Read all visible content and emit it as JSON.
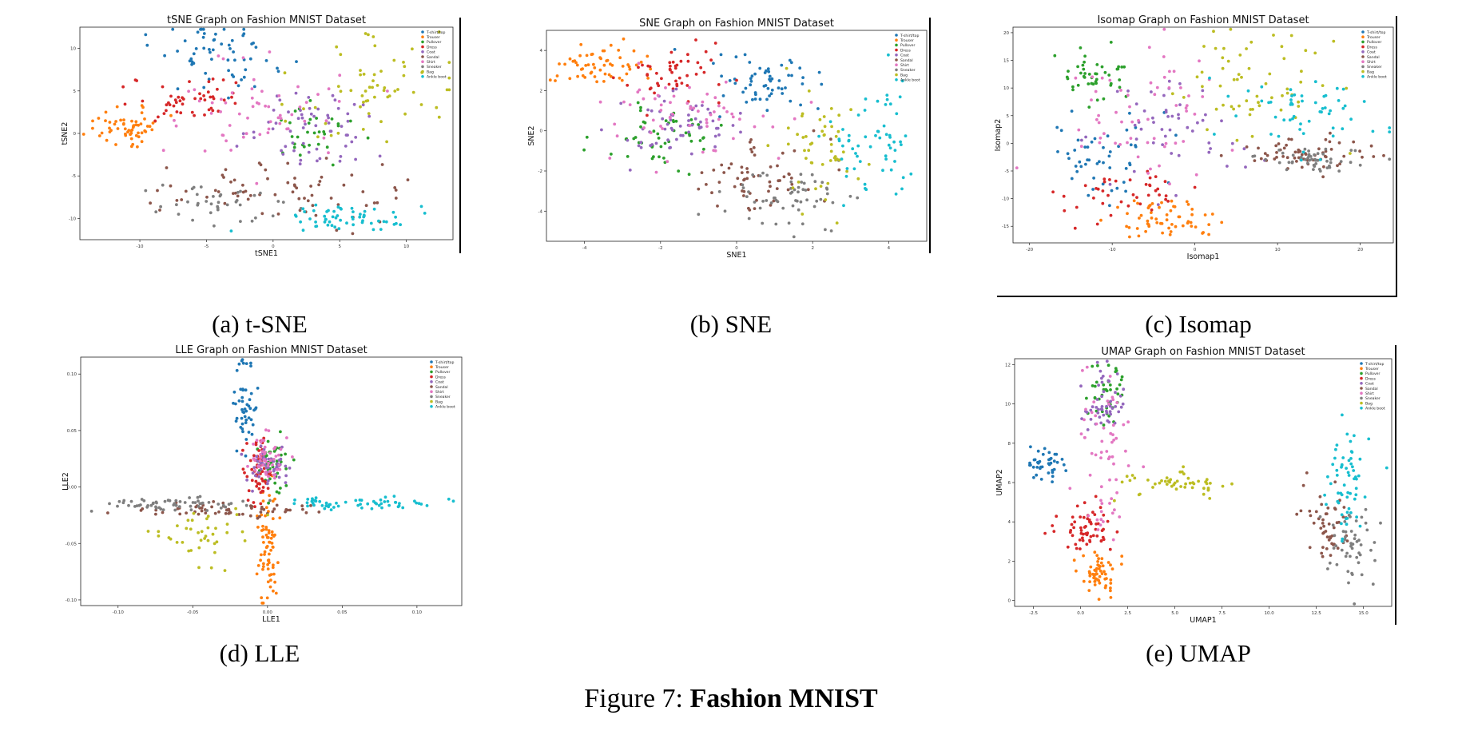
{
  "figure": {
    "prefix": "Figure 7:",
    "title": "Fashion MNIST"
  },
  "legend_labels": [
    "T-shirt/top",
    "Trouser",
    "Pullover",
    "Dress",
    "Coat",
    "Sandal",
    "Shirt",
    "Sneaker",
    "Bag",
    "Ankle boot"
  ],
  "colors": [
    "#1f77b4",
    "#ff7f0e",
    "#2ca02c",
    "#d62728",
    "#9467bd",
    "#8c564b",
    "#e377c2",
    "#7f7f7f",
    "#bcbd22",
    "#17becf"
  ],
  "panels": [
    {
      "caption": "(a) t-SNE",
      "title": "tSNE Graph on Fashion MNIST Dataset",
      "xlabel": "tSNE1",
      "ylabel": "tSNE2",
      "xticks": [
        "-10",
        "-5",
        "0",
        "5",
        "10"
      ],
      "yticks": [
        "-10",
        "-5",
        "0",
        "5",
        "10"
      ]
    },
    {
      "caption": "(b) SNE",
      "title": "SNE Graph on Fashion MNIST Dataset",
      "xlabel": "SNE1",
      "ylabel": "SNE2",
      "xticks": [
        "-4",
        "-2",
        "0",
        "2",
        "4"
      ],
      "yticks": [
        "-4",
        "-2",
        "0",
        "2",
        "4"
      ]
    },
    {
      "caption": "(c) Isomap",
      "title": "Isomap Graph on Fashion MNIST Dataset",
      "xlabel": "Isomap1",
      "ylabel": "Isomap2",
      "xticks": [
        "-20",
        "-10",
        "0",
        "10",
        "20"
      ],
      "yticks": [
        "-15",
        "-10",
        "-5",
        "0",
        "5",
        "10",
        "15",
        "20"
      ]
    },
    {
      "caption": "(d) LLE",
      "title": "LLE Graph on Fashion MNIST Dataset",
      "xlabel": "LLE1",
      "ylabel": "LLE2",
      "xticks": [
        "-0.10",
        "-0.05",
        "0.00",
        "0.05",
        "0.10"
      ],
      "yticks": [
        "-0.10",
        "-0.05",
        "0.00",
        "0.05",
        "0.10"
      ]
    },
    {
      "caption": "(e) UMAP",
      "title": "UMAP Graph on Fashion MNIST Dataset",
      "xlabel": "UMAP1",
      "ylabel": "UMAP2",
      "xticks": [
        "-2.5",
        "0.0",
        "2.5",
        "5.0",
        "7.5",
        "10.0",
        "12.5",
        "15.0"
      ],
      "yticks": [
        "0",
        "2",
        "4",
        "6",
        "8",
        "10",
        "12"
      ]
    }
  ],
  "chart_data": [
    {
      "type": "scatter",
      "title": "tSNE Graph on Fashion MNIST Dataset",
      "xlabel": "tSNE1",
      "ylabel": "tSNE2",
      "xlim": [
        -14.5,
        13.5
      ],
      "ylim": [
        -12.5,
        12.5
      ],
      "legend": "top-right",
      "clusters": [
        {
          "label": "T-shirt/top",
          "cx": -4,
          "cy": 9,
          "sx": 2.2,
          "sy": 2.2,
          "n": 60
        },
        {
          "label": "Trouser",
          "cx": -11,
          "cy": 1,
          "sx": 1.5,
          "sy": 1.0,
          "n": 60
        },
        {
          "label": "Pullover",
          "cx": 3,
          "cy": 0,
          "sx": 2.0,
          "sy": 2.0,
          "n": 30
        },
        {
          "label": "Dress",
          "cx": -6,
          "cy": 4,
          "sx": 2.2,
          "sy": 1.5,
          "n": 50
        },
        {
          "label": "Coat",
          "cx": 3,
          "cy": 1,
          "sx": 2.5,
          "sy": 2.5,
          "n": 60
        },
        {
          "label": "Sandal",
          "cx": 0,
          "cy": -7,
          "sx": 5.0,
          "sy": 1.8,
          "n": 70
        },
        {
          "label": "Shirt",
          "cx": -1,
          "cy": 3,
          "sx": 3.0,
          "sy": 3.0,
          "n": 60
        },
        {
          "label": "Sneaker",
          "cx": -4,
          "cy": -8.5,
          "sx": 2.5,
          "sy": 1.2,
          "n": 40
        },
        {
          "label": "Bag",
          "cx": 8,
          "cy": 6,
          "sx": 3.0,
          "sy": 3.0,
          "n": 60
        },
        {
          "label": "Ankle boot",
          "cx": 5,
          "cy": -10,
          "sx": 2.5,
          "sy": 0.8,
          "n": 60
        }
      ]
    },
    {
      "type": "scatter",
      "title": "SNE Graph on Fashion MNIST Dataset",
      "xlabel": "SNE1",
      "ylabel": "SNE2",
      "xlim": [
        -5,
        5
      ],
      "ylim": [
        -5.5,
        5
      ],
      "legend": "top-right",
      "clusters": [
        {
          "label": "T-shirt/top",
          "cx": 0.6,
          "cy": 2.2,
          "sx": 0.8,
          "sy": 0.7,
          "n": 60
        },
        {
          "label": "Trouser",
          "cx": -3.6,
          "cy": 3.2,
          "sx": 0.55,
          "sy": 0.55,
          "n": 60
        },
        {
          "label": "Pullover",
          "cx": -2.2,
          "cy": -0.4,
          "sx": 0.7,
          "sy": 0.9,
          "n": 50
        },
        {
          "label": "Dress",
          "cx": -1.6,
          "cy": 3.0,
          "sx": 0.6,
          "sy": 0.7,
          "n": 50
        },
        {
          "label": "Coat",
          "cx": -1.5,
          "cy": 0.3,
          "sx": 0.9,
          "sy": 0.9,
          "n": 60
        },
        {
          "label": "Sandal",
          "cx": 0.6,
          "cy": -2.3,
          "sx": 0.8,
          "sy": 0.9,
          "n": 60
        },
        {
          "label": "Shirt",
          "cx": -1.2,
          "cy": 0.8,
          "sx": 1.1,
          "sy": 1.1,
          "n": 60
        },
        {
          "label": "Sneaker",
          "cx": 1.2,
          "cy": -3.5,
          "sx": 0.9,
          "sy": 0.9,
          "n": 60
        },
        {
          "label": "Bag",
          "cx": 2.2,
          "cy": -0.8,
          "sx": 0.6,
          "sy": 1.2,
          "n": 50
        },
        {
          "label": "Ankle boot",
          "cx": 3.6,
          "cy": -0.5,
          "sx": 0.6,
          "sy": 1.4,
          "n": 60
        }
      ]
    },
    {
      "type": "scatter",
      "title": "Isomap Graph on Fashion MNIST Dataset",
      "xlabel": "Isomap1",
      "ylabel": "Isomap2",
      "xlim": [
        -22,
        24
      ],
      "ylim": [
        -18,
        21
      ],
      "legend": "top-right",
      "clusters": [
        {
          "label": "T-shirt/top",
          "cx": -11,
          "cy": -2,
          "sx": 3.5,
          "sy": 4,
          "n": 50
        },
        {
          "label": "Trouser",
          "cx": -4,
          "cy": -14,
          "sx": 3,
          "sy": 2,
          "n": 60
        },
        {
          "label": "Pullover",
          "cx": -12,
          "cy": 12,
          "sx": 2.5,
          "sy": 2.5,
          "n": 45
        },
        {
          "label": "Dress",
          "cx": -8,
          "cy": -9,
          "sx": 4,
          "sy": 2.5,
          "n": 40
        },
        {
          "label": "Coat",
          "cx": -3,
          "cy": 2,
          "sx": 5,
          "sy": 5,
          "n": 50
        },
        {
          "label": "Sandal",
          "cx": 13,
          "cy": -2,
          "sx": 4,
          "sy": 1.5,
          "n": 60
        },
        {
          "label": "Shirt",
          "cx": -6,
          "cy": 5,
          "sx": 6,
          "sy": 6,
          "n": 60
        },
        {
          "label": "Sneaker",
          "cx": 14,
          "cy": -3,
          "sx": 3.5,
          "sy": 1.2,
          "n": 50
        },
        {
          "label": "Bag",
          "cx": 7,
          "cy": 10,
          "sx": 5,
          "sy": 5,
          "n": 60
        },
        {
          "label": "Ankle boot",
          "cx": 14,
          "cy": 5,
          "sx": 4.5,
          "sy": 4,
          "n": 55
        }
      ]
    },
    {
      "type": "scatter",
      "title": "LLE Graph on Fashion MNIST Dataset",
      "xlabel": "LLE1",
      "ylabel": "LLE2",
      "xlim": [
        -0.125,
        0.13
      ],
      "ylim": [
        -0.105,
        0.115
      ],
      "legend": "top-right",
      "clusters": [
        {
          "label": "T-shirt/top",
          "cx": -0.015,
          "cy": 0.07,
          "sx": 0.004,
          "sy": 0.02,
          "n": 50
        },
        {
          "label": "Trouser",
          "cx": 0.0,
          "cy": -0.05,
          "sx": 0.004,
          "sy": 0.025,
          "n": 70
        },
        {
          "label": "Pullover",
          "cx": 0.003,
          "cy": 0.02,
          "sx": 0.006,
          "sy": 0.012,
          "n": 40
        },
        {
          "label": "Dress",
          "cx": -0.005,
          "cy": 0.015,
          "sx": 0.004,
          "sy": 0.02,
          "n": 60
        },
        {
          "label": "Coat",
          "cx": 0.002,
          "cy": 0.022,
          "sx": 0.006,
          "sy": 0.008,
          "n": 50
        },
        {
          "label": "Sandal",
          "cx": -0.02,
          "cy": -0.02,
          "sx": 0.03,
          "sy": 0.003,
          "n": 60
        },
        {
          "label": "Shirt",
          "cx": 0.0,
          "cy": 0.025,
          "sx": 0.006,
          "sy": 0.01,
          "n": 50
        },
        {
          "label": "Sneaker",
          "cx": -0.06,
          "cy": -0.015,
          "sx": 0.025,
          "sy": 0.003,
          "n": 60
        },
        {
          "label": "Bag",
          "cx": -0.045,
          "cy": -0.04,
          "sx": 0.02,
          "sy": 0.012,
          "n": 40
        },
        {
          "label": "Ankle boot",
          "cx": 0.06,
          "cy": -0.015,
          "sx": 0.025,
          "sy": 0.003,
          "n": 60
        }
      ]
    },
    {
      "type": "scatter",
      "title": "UMAP Graph on Fashion MNIST Dataset",
      "xlabel": "UMAP1",
      "ylabel": "UMAP2",
      "xlim": [
        -3.5,
        16.5
      ],
      "ylim": [
        -0.3,
        12.3
      ],
      "legend": "top-right",
      "clusters": [
        {
          "label": "T-shirt/top",
          "cx": -1.8,
          "cy": 6.9,
          "sx": 0.6,
          "sy": 0.3,
          "n": 40
        },
        {
          "label": "Trouser",
          "cx": 1.0,
          "cy": 1.3,
          "sx": 0.5,
          "sy": 0.6,
          "n": 60
        },
        {
          "label": "Pullover",
          "cx": 1.3,
          "cy": 10.5,
          "sx": 0.6,
          "sy": 0.8,
          "n": 40
        },
        {
          "label": "Dress",
          "cx": 0.5,
          "cy": 3.7,
          "sx": 0.8,
          "sy": 0.7,
          "n": 60
        },
        {
          "label": "Coat",
          "cx": 1.3,
          "cy": 10,
          "sx": 0.6,
          "sy": 0.8,
          "n": 50
        },
        {
          "label": "Sandal",
          "cx": 13,
          "cy": 3.5,
          "sx": 0.6,
          "sy": 1.0,
          "n": 50
        },
        {
          "label": "Shirt",
          "cx": 1.2,
          "cy": 8,
          "sx": 0.8,
          "sy": 2.2,
          "n": 60
        },
        {
          "label": "Sneaker",
          "cx": 14.4,
          "cy": 2.5,
          "sx": 0.6,
          "sy": 1.0,
          "n": 50
        },
        {
          "label": "Bag",
          "cx": 5.0,
          "cy": 6.0,
          "sx": 1.6,
          "sy": 0.4,
          "n": 50
        },
        {
          "label": "Ankle boot",
          "cx": 14.2,
          "cy": 6.0,
          "sx": 0.5,
          "sy": 1.2,
          "n": 60
        }
      ]
    }
  ]
}
